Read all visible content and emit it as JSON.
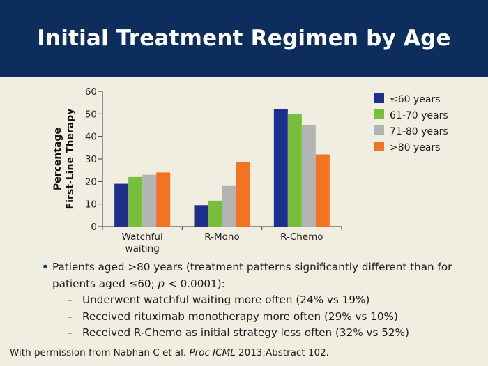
{
  "slide": {
    "title": "Initial Treatment Regimen by Age"
  },
  "bullets": {
    "main_prefix": "Patients aged >80 years (treatment patterns significantly different than for patients aged ≤60; ",
    "main_p": "p",
    "main_suffix": " < 0.0001):",
    "sub": [
      "Underwent watchful waiting more often (24% vs 19%)",
      "Received rituximab monotherapy more often (29% vs 10%)",
      "Received R-Chemo as initial strategy less often (32% vs 52%)"
    ]
  },
  "footnote": {
    "prefix": "With permission from Nabhan C et al. ",
    "journal": "Proc ICML",
    "suffix": " 2013;Abstract 102."
  },
  "chart_data": {
    "type": "bar",
    "title": "",
    "xlabel": "",
    "ylabel": [
      "Percentage",
      "First-Line Therapy"
    ],
    "ylim": [
      0,
      60
    ],
    "yticks": [
      0,
      10,
      20,
      30,
      40,
      50,
      60
    ],
    "categories": [
      [
        "Watchful",
        "waiting"
      ],
      [
        "R-Mono"
      ],
      [
        "R-Chemo"
      ]
    ],
    "series": [
      {
        "name": "≤60 years",
        "color": "#1c2f8c",
        "values": [
          19,
          9.5,
          52
        ]
      },
      {
        "name": "61-70 years",
        "color": "#76bf3a",
        "values": [
          22,
          11.5,
          50
        ]
      },
      {
        "name": "71-80 years",
        "color": "#b3b3b3",
        "values": [
          23,
          18,
          45
        ]
      },
      {
        "name": ">80 years",
        "color": "#f27321",
        "values": [
          24,
          28.5,
          32
        ]
      }
    ],
    "legend_position": "right",
    "grid": false
  }
}
